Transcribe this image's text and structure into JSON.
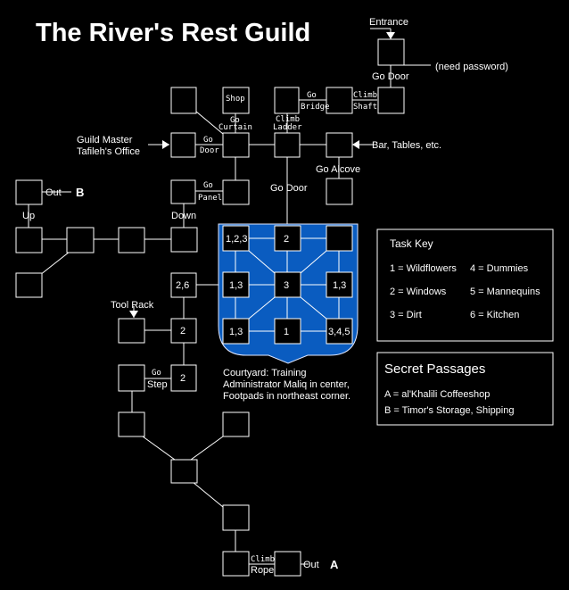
{
  "title": "The River's Rest Guild",
  "labels": {
    "entrance": "Entrance",
    "go_door_top": "Go Door",
    "need_password": "(need password)",
    "shop": "Shop",
    "go1": "Go",
    "curtain": "Curtain",
    "climb_ladder_1": "Climb",
    "climb_ladder_2": "Ladder",
    "go_bridge_1": "Go",
    "go_bridge_2": "Bridge",
    "climb_shaft_1": "Climb",
    "climb_shaft_2": "Shaft",
    "guild_master_1": "Guild Master",
    "guild_master_2": "Tafileh's Office",
    "go_door_mid_1": "Go",
    "go_door_mid_2": "Door",
    "bar": "Bar, Tables, etc.",
    "go_alcove": "Go Alcove",
    "go_panel_1": "Go",
    "go_panel_2": "Panel",
    "go_door_court": "Go Door",
    "out_b": "Out",
    "b_letter": "B",
    "up": "Up",
    "down": "Down",
    "tool_rack": "Tool Rack",
    "go_step_1": "Go",
    "go_step_2": "Step",
    "courtyard_1": "Courtyard: Training",
    "courtyard_2": "Administrator Maliq in center,",
    "courtyard_3": "Footpads in northeast corner.",
    "climb_rope_1": "Climb",
    "climb_rope_2": "Rope",
    "out_a": "Out",
    "a_letter": "A"
  },
  "rooms": {
    "r_126": "2,6",
    "r_2a": "2",
    "r_2b": "2",
    "c_123": "1,2,3",
    "c_2": "2",
    "c_13a": "1,3",
    "c_3": "3",
    "c_13b": "1,3",
    "c_13c": "1,3",
    "c_1": "1",
    "c_345": "3,4,5"
  },
  "task_key": {
    "heading": "Task Key",
    "items": [
      "1 = Wildflowers",
      "4 = Dummies",
      "2 = Windows",
      "5 = Mannequins",
      "3 = Dirt",
      "6 = Kitchen"
    ]
  },
  "secret_passages": {
    "heading": "Secret Passages",
    "items": [
      "A = al'Khalili Coffeeshop",
      "B = Timor's Storage, Shipping"
    ]
  },
  "colors": {
    "courtyard": "#0a5cc0",
    "background": "#000000",
    "ink": "#ffffff"
  }
}
